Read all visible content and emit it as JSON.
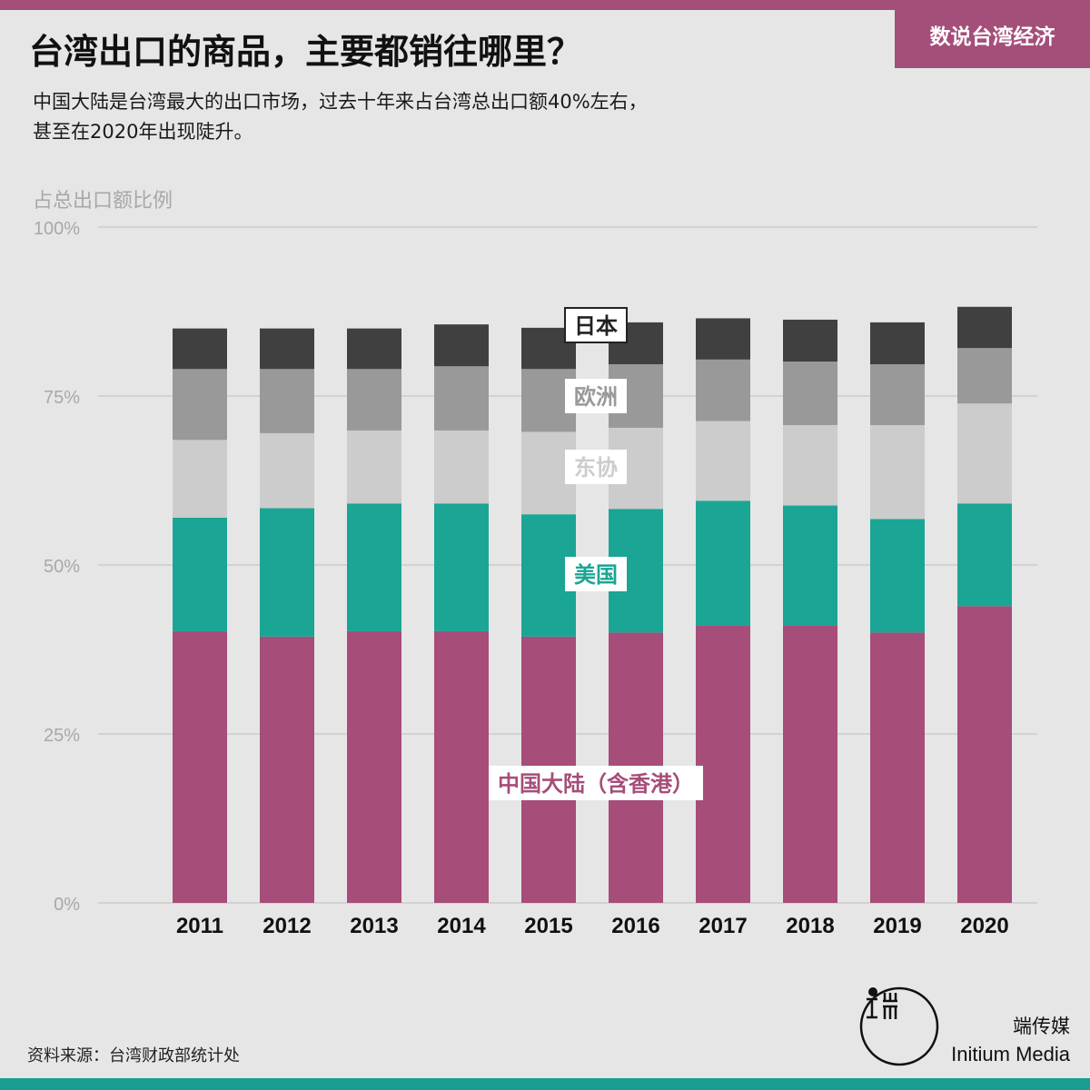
{
  "header": {
    "title": "台湾出口的商品，主要都销往哪里？",
    "subtitle_lines": [
      "中国大陆是台湾最大的出口市场，过去十年来占台湾总出口额40%左右，",
      "甚至在2020年出现陡升。"
    ],
    "series_tag": "数说台湾经济"
  },
  "colors": {
    "accent": "#a44e7a",
    "teal_bar": "#1a9e8f",
    "background": "#e6e6e6",
    "japan": "#404040",
    "europe": "#999999",
    "asean": "#cccccc",
    "usa": "#1ba594",
    "china": "#a64d79"
  },
  "chart_data": {
    "type": "bar",
    "stacked": true,
    "title": "",
    "xlabel": "",
    "ylabel": "占总出口额比例",
    "ylim": [
      0,
      100
    ],
    "yticks": [
      0,
      25,
      50,
      75,
      100
    ],
    "ytick_labels": [
      "0%",
      "25%",
      "50%",
      "75%",
      "100%"
    ],
    "grid": true,
    "categories": [
      "2011",
      "2012",
      "2013",
      "2014",
      "2015",
      "2016",
      "2017",
      "2018",
      "2019",
      "2020"
    ],
    "series": [
      {
        "name": "中国大陆（含香港）",
        "color": "#a64d79",
        "label_color": "#a64d79",
        "values": [
          40.2,
          39.4,
          40.2,
          40.2,
          39.4,
          40.0,
          41.0,
          41.0,
          40.0,
          43.9
        ]
      },
      {
        "name": "美国",
        "color": "#1ba594",
        "label_color": "#1ba594",
        "values": [
          16.8,
          19.0,
          18.9,
          18.9,
          18.1,
          18.3,
          18.5,
          17.8,
          16.8,
          15.2
        ]
      },
      {
        "name": "东协",
        "color": "#cccccc",
        "label_color": "#cccccc",
        "values": [
          11.5,
          11.1,
          10.8,
          10.8,
          12.2,
          12.0,
          11.8,
          11.9,
          13.9,
          14.8
        ]
      },
      {
        "name": "欧洲",
        "color": "#999999",
        "label_color": "#999999",
        "values": [
          10.5,
          9.5,
          9.1,
          9.5,
          9.3,
          9.4,
          9.1,
          9.4,
          9.0,
          8.2
        ]
      },
      {
        "name": "日本",
        "color": "#404040",
        "label_color": "#222222",
        "values": [
          6.0,
          6.0,
          6.0,
          6.2,
          6.1,
          6.2,
          6.1,
          6.2,
          6.2,
          6.1
        ]
      }
    ]
  },
  "footer": {
    "source": "资料来源：台湾财政部统计处",
    "brand_cn": "端传媒",
    "brand_en": "Initium Media"
  }
}
